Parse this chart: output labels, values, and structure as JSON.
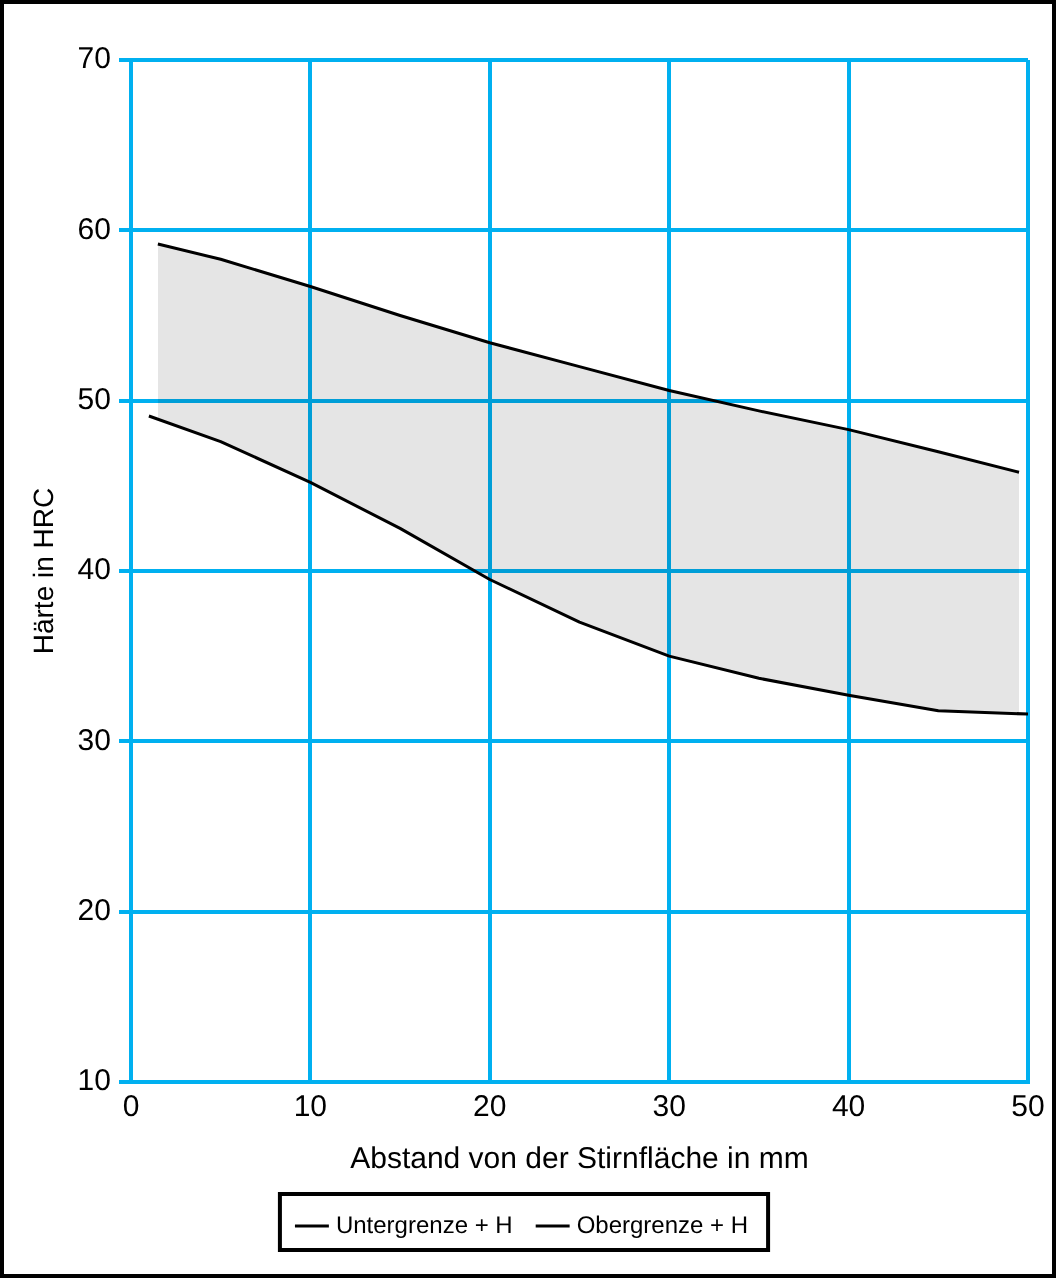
{
  "chart_data": {
    "type": "line",
    "xlabel": "Abstand von der Stirnfläche in mm",
    "ylabel": "Härte in HRC",
    "series": [
      {
        "name": "Untergrenze + H",
        "color": "#000000",
        "x": [
          1,
          5,
          10,
          15,
          20,
          25,
          30,
          35,
          40,
          45,
          50
        ],
        "values": [
          49.1,
          47.6,
          45.2,
          42.5,
          39.5,
          37.0,
          35.0,
          33.7,
          32.7,
          31.8,
          31.6
        ]
      },
      {
        "name": "Obergrenze + H",
        "color": "#000000",
        "x": [
          1.5,
          5,
          10,
          15,
          20,
          25,
          30,
          35,
          40,
          45,
          49.5
        ],
        "values": [
          59.2,
          58.3,
          56.7,
          55.0,
          53.4,
          52.0,
          50.6,
          49.4,
          48.3,
          47.0,
          45.8
        ],
        "lower": [
          49.0,
          47.6,
          45.2,
          42.5,
          39.5,
          37.0,
          35.0,
          33.7,
          32.7,
          31.8,
          31.6
        ],
        "upper": [
          59.2,
          58.3,
          56.7,
          55.0,
          53.4,
          52.0,
          50.6,
          49.4,
          48.3,
          47.0,
          45.8
        ]
      }
    ],
    "xlim": [
      0,
      50
    ],
    "xticks": [
      0,
      10,
      20,
      30,
      40,
      50
    ],
    "ylim": [
      10,
      70
    ],
    "yticks": [
      10,
      20,
      30,
      40,
      50,
      60,
      70
    ],
    "grid": true,
    "legend": "bottom",
    "marker": "none",
    "line_style": "solid"
  }
}
